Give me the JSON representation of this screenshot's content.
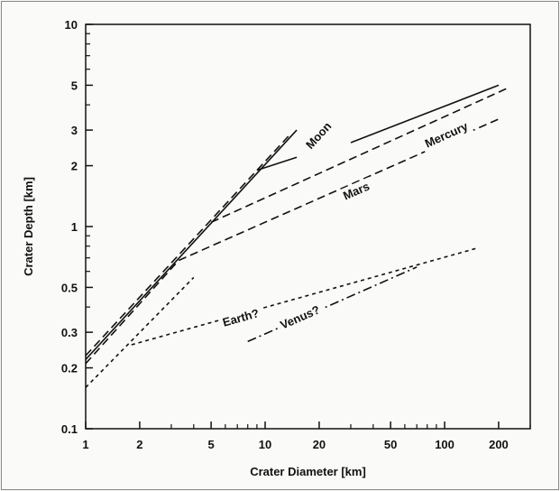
{
  "chart_data": {
    "type": "line",
    "title": "",
    "xlabel": "Crater Diameter [km]",
    "ylabel": "Crater Depth [km]",
    "xscale": "log",
    "yscale": "log",
    "xlim": [
      1,
      300
    ],
    "ylim": [
      0.1,
      10
    ],
    "x_tick_labels": [
      {
        "value": 1,
        "label": "1"
      },
      {
        "value": 2,
        "label": "2"
      },
      {
        "value": 5,
        "label": "5"
      },
      {
        "value": 10,
        "label": "10"
      },
      {
        "value": 20,
        "label": "20"
      },
      {
        "value": 50,
        "label": "50"
      },
      {
        "value": 100,
        "label": "100"
      },
      {
        "value": 200,
        "label": "200"
      }
    ],
    "y_tick_labels": [
      {
        "value": 0.1,
        "label": "0.1"
      },
      {
        "value": 0.2,
        "label": "0.2"
      },
      {
        "value": 0.3,
        "label": "0.3"
      },
      {
        "value": 0.5,
        "label": "0.5"
      },
      {
        "value": 1,
        "label": "1"
      },
      {
        "value": 2,
        "label": "2"
      },
      {
        "value": 3,
        "label": "3"
      },
      {
        "value": 5,
        "label": "5"
      },
      {
        "value": 10,
        "label": "10"
      }
    ],
    "grid": false,
    "legend": "none",
    "series": [
      {
        "name": "Moon",
        "style": "solid",
        "segments": [
          [
            [
              1,
              0.22
            ],
            [
              15,
              3.0
            ]
          ],
          [
            [
              9,
              1.9
            ],
            [
              15,
              2.2
            ]
          ],
          [
            [
              30,
              2.6
            ],
            [
              200,
              5.0
            ]
          ]
        ],
        "label_at": [
          18,
          2.4
        ]
      },
      {
        "name": "Mercury",
        "style": "dashed",
        "segments": [
          [
            [
              1,
              0.23
            ],
            [
              14,
              2.9
            ]
          ],
          [
            [
              5,
              1.05
            ],
            [
              220,
              4.8
            ]
          ]
        ],
        "label_at": [
          80,
          2.45
        ]
      },
      {
        "name": "Mars",
        "style": "dashed",
        "segments": [
          [
            [
              1,
              0.21
            ],
            [
              3.3,
              0.68
            ]
          ],
          [
            [
              3.3,
              0.68
            ],
            [
              200,
              3.4
            ]
          ]
        ],
        "label_at": [
          28,
          1.35
        ]
      },
      {
        "name": "Earth?",
        "style": "dotted",
        "segments": [
          [
            [
              1,
              0.16
            ],
            [
              4,
              0.56
            ]
          ],
          [
            [
              1.8,
              0.26
            ],
            [
              150,
              0.78
            ]
          ]
        ],
        "label_at": [
          5.9,
          0.32
        ]
      },
      {
        "name": "Venus?",
        "style": "dashdot",
        "segments": [
          [
            [
              8,
              0.27
            ],
            [
              70,
              0.63
            ]
          ]
        ],
        "label_at": [
          12.5,
          0.31
        ]
      }
    ]
  }
}
